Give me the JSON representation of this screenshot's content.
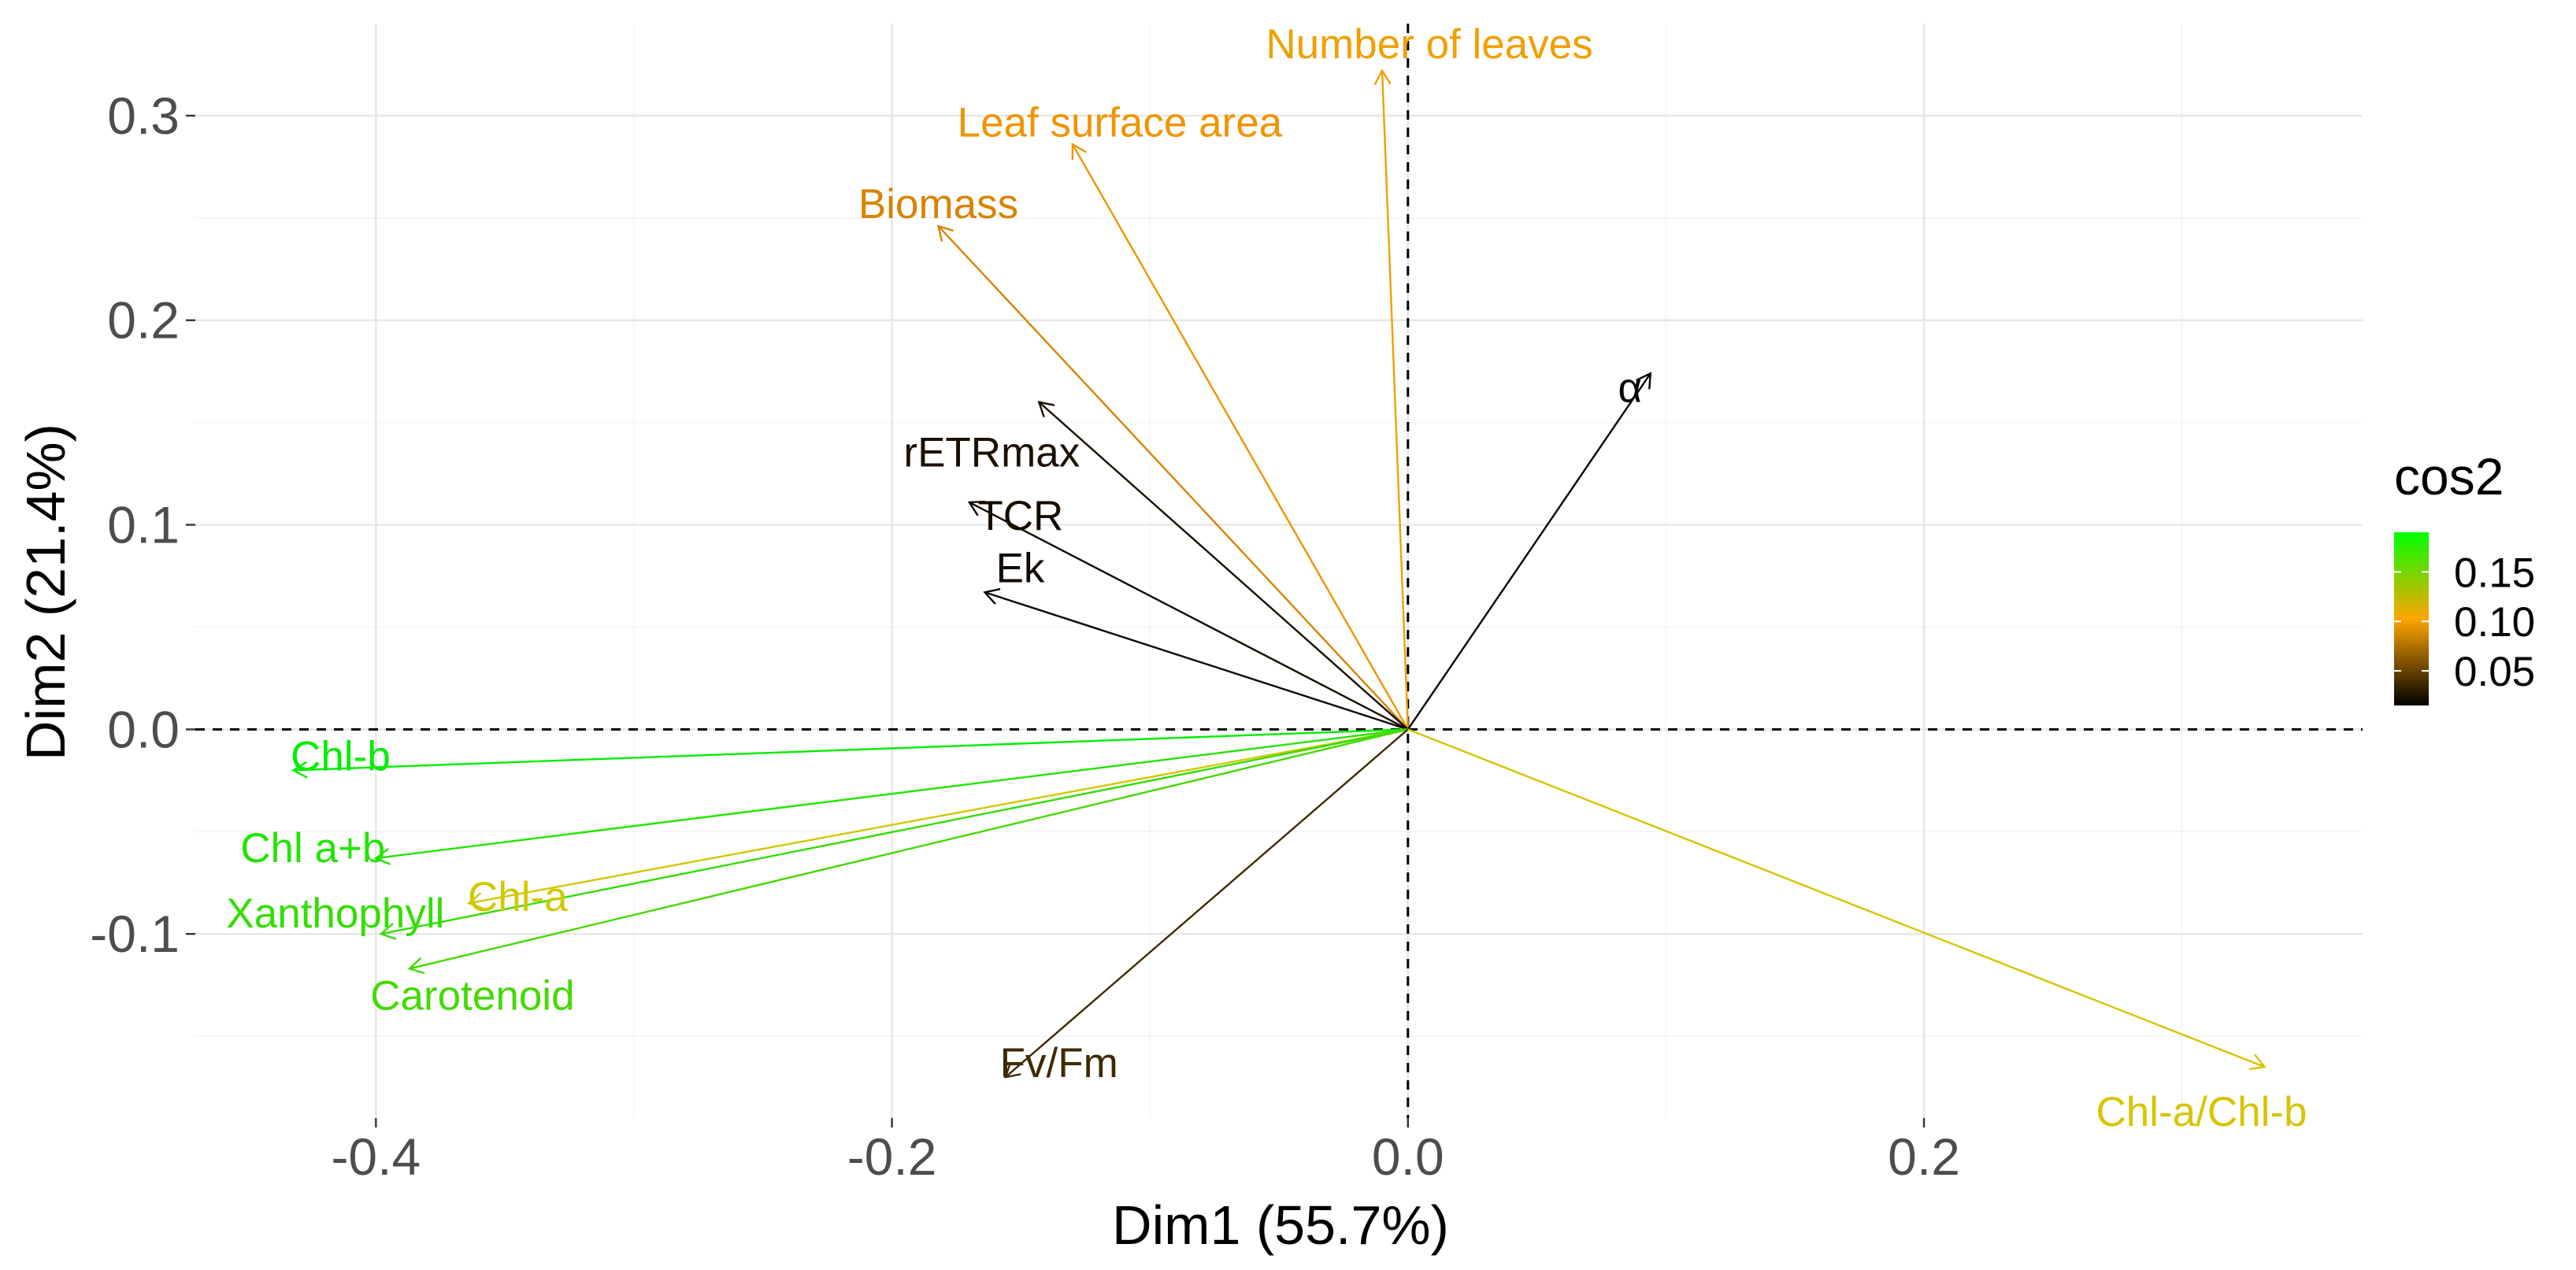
{
  "chart_data": {
    "type": "biplot",
    "title": "",
    "xlabel": "Dim1 (55.7%)",
    "ylabel": "Dim2 (21.4%)",
    "xlim": [
      -0.47,
      0.37
    ],
    "ylim": [
      -0.19,
      0.345
    ],
    "xticks": [
      -0.4,
      -0.2,
      0.0,
      0.2
    ],
    "xtick_labels": [
      "-0.4",
      "-0.2",
      "0.0",
      "0.2"
    ],
    "yticks": [
      -0.1,
      0.0,
      0.1,
      0.2,
      0.3
    ],
    "ytick_labels": [
      "-0.1",
      "0.0",
      "0.1",
      "0.2",
      "0.3"
    ],
    "grid": true,
    "reference_lines": {
      "x": 0,
      "y": 0,
      "style": "dashed"
    },
    "variables": [
      {
        "name": "Number of leaves",
        "x": -0.01,
        "y": 0.322,
        "cos2": 0.11,
        "color": "#f0a000"
      },
      {
        "name": "Leaf surface area",
        "x": -0.13,
        "y": 0.286,
        "cos2": 0.105,
        "color": "#f09400"
      },
      {
        "name": "Biomass",
        "x": -0.182,
        "y": 0.246,
        "cos2": 0.09,
        "color": "#d98300"
      },
      {
        "name": "rETRmax",
        "x": -0.143,
        "y": 0.16,
        "cos2": 0.03,
        "color": "#1a1000"
      },
      {
        "name": "TCR",
        "x": -0.17,
        "y": 0.111,
        "cos2": 0.025,
        "color": "#150c00"
      },
      {
        "name": "Ek",
        "x": -0.164,
        "y": 0.067,
        "cos2": 0.02,
        "color": "#100800"
      },
      {
        "name": "α",
        "x": 0.094,
        "y": 0.174,
        "cos2": 0.015,
        "color": "#0a0500"
      },
      {
        "name": "Chl-b",
        "x": -0.432,
        "y": -0.02,
        "cos2": 0.185,
        "color": "#00ee00"
      },
      {
        "name": "Chl a+b",
        "x": -0.4,
        "y": -0.063,
        "cos2": 0.175,
        "color": "#22e400"
      },
      {
        "name": "Chl-a",
        "x": -0.364,
        "y": -0.085,
        "cos2": 0.13,
        "color": "#d0c800"
      },
      {
        "name": "Xanthophyll",
        "x": -0.398,
        "y": -0.1,
        "cos2": 0.17,
        "color": "#33de00"
      },
      {
        "name": "Carotenoid",
        "x": -0.387,
        "y": -0.117,
        "cos2": 0.165,
        "color": "#44da00"
      },
      {
        "name": "Fv/Fm",
        "x": -0.156,
        "y": -0.17,
        "cos2": 0.05,
        "color": "#3d2a00"
      },
      {
        "name": "Chl-a/Chl-b",
        "x": 0.332,
        "y": -0.165,
        "cos2": 0.13,
        "color": "#d8c400"
      }
    ],
    "legend": {
      "title": "cos2",
      "position": "right",
      "tick_values": [
        0.15,
        0.1,
        0.05
      ],
      "tick_labels": [
        "0.15",
        "0.10",
        "0.05"
      ],
      "range": [
        0.015,
        0.19
      ],
      "colors": [
        "#000000",
        "#ffa500",
        "#00ff00"
      ]
    }
  }
}
